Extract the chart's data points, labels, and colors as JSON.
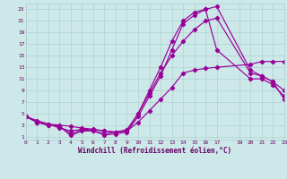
{
  "xlabel": "Windchill (Refroidissement éolien,°C)",
  "bg_color": "#cce8e8",
  "line_color": "#990099",
  "grid_color": "#b0d0d0",
  "xlim": [
    0,
    23
  ],
  "ylim": [
    0.5,
    24
  ],
  "xticks": [
    0,
    1,
    2,
    3,
    4,
    5,
    6,
    7,
    8,
    9,
    10,
    11,
    12,
    13,
    14,
    15,
    16,
    17,
    19,
    20,
    21,
    22,
    23
  ],
  "yticks": [
    1,
    3,
    5,
    7,
    9,
    11,
    13,
    15,
    17,
    19,
    21,
    23
  ],
  "curves": [
    {
      "x": [
        0,
        1,
        2,
        3,
        4,
        5,
        6,
        7,
        8,
        9,
        10,
        11,
        12,
        13,
        14,
        15,
        16,
        17,
        20,
        21,
        22,
        23
      ],
      "y": [
        4.5,
        3.8,
        3.2,
        3.0,
        2.8,
        2.5,
        2.3,
        2.0,
        1.8,
        2.0,
        3.5,
        5.5,
        7.5,
        9.5,
        12.0,
        12.5,
        12.8,
        13.0,
        13.5,
        14.0,
        14.0,
        14.0
      ]
    },
    {
      "x": [
        0,
        1,
        2,
        3,
        4,
        5,
        6,
        7,
        8,
        9,
        10,
        11,
        12,
        13,
        14,
        15,
        16,
        17,
        20,
        21,
        22,
        23
      ],
      "y": [
        4.5,
        3.5,
        3.2,
        2.5,
        2.0,
        2.3,
        2.2,
        2.0,
        1.8,
        2.2,
        5.0,
        8.5,
        12.0,
        15.0,
        17.5,
        19.5,
        21.0,
        21.5,
        12.0,
        11.5,
        10.5,
        9.0
      ]
    },
    {
      "x": [
        0,
        1,
        2,
        3,
        4,
        5,
        6,
        7,
        8,
        9,
        10,
        11,
        12,
        13,
        14,
        15,
        16,
        17,
        20,
        21,
        22,
        23
      ],
      "y": [
        4.5,
        3.5,
        3.0,
        2.8,
        1.5,
        2.2,
        2.0,
        1.5,
        1.8,
        2.0,
        5.0,
        9.0,
        13.0,
        17.5,
        21.0,
        22.5,
        23.0,
        16.0,
        11.0,
        11.0,
        10.0,
        8.0
      ]
    },
    {
      "x": [
        0,
        1,
        2,
        3,
        4,
        5,
        6,
        7,
        8,
        9,
        10,
        11,
        12,
        13,
        14,
        15,
        16,
        17,
        20,
        21,
        22,
        23
      ],
      "y": [
        4.5,
        3.5,
        3.0,
        2.8,
        1.2,
        2.0,
        2.0,
        1.3,
        1.5,
        1.8,
        4.5,
        8.0,
        11.5,
        16.0,
        20.5,
        22.0,
        23.0,
        23.5,
        12.5,
        11.5,
        10.5,
        7.5
      ]
    }
  ]
}
